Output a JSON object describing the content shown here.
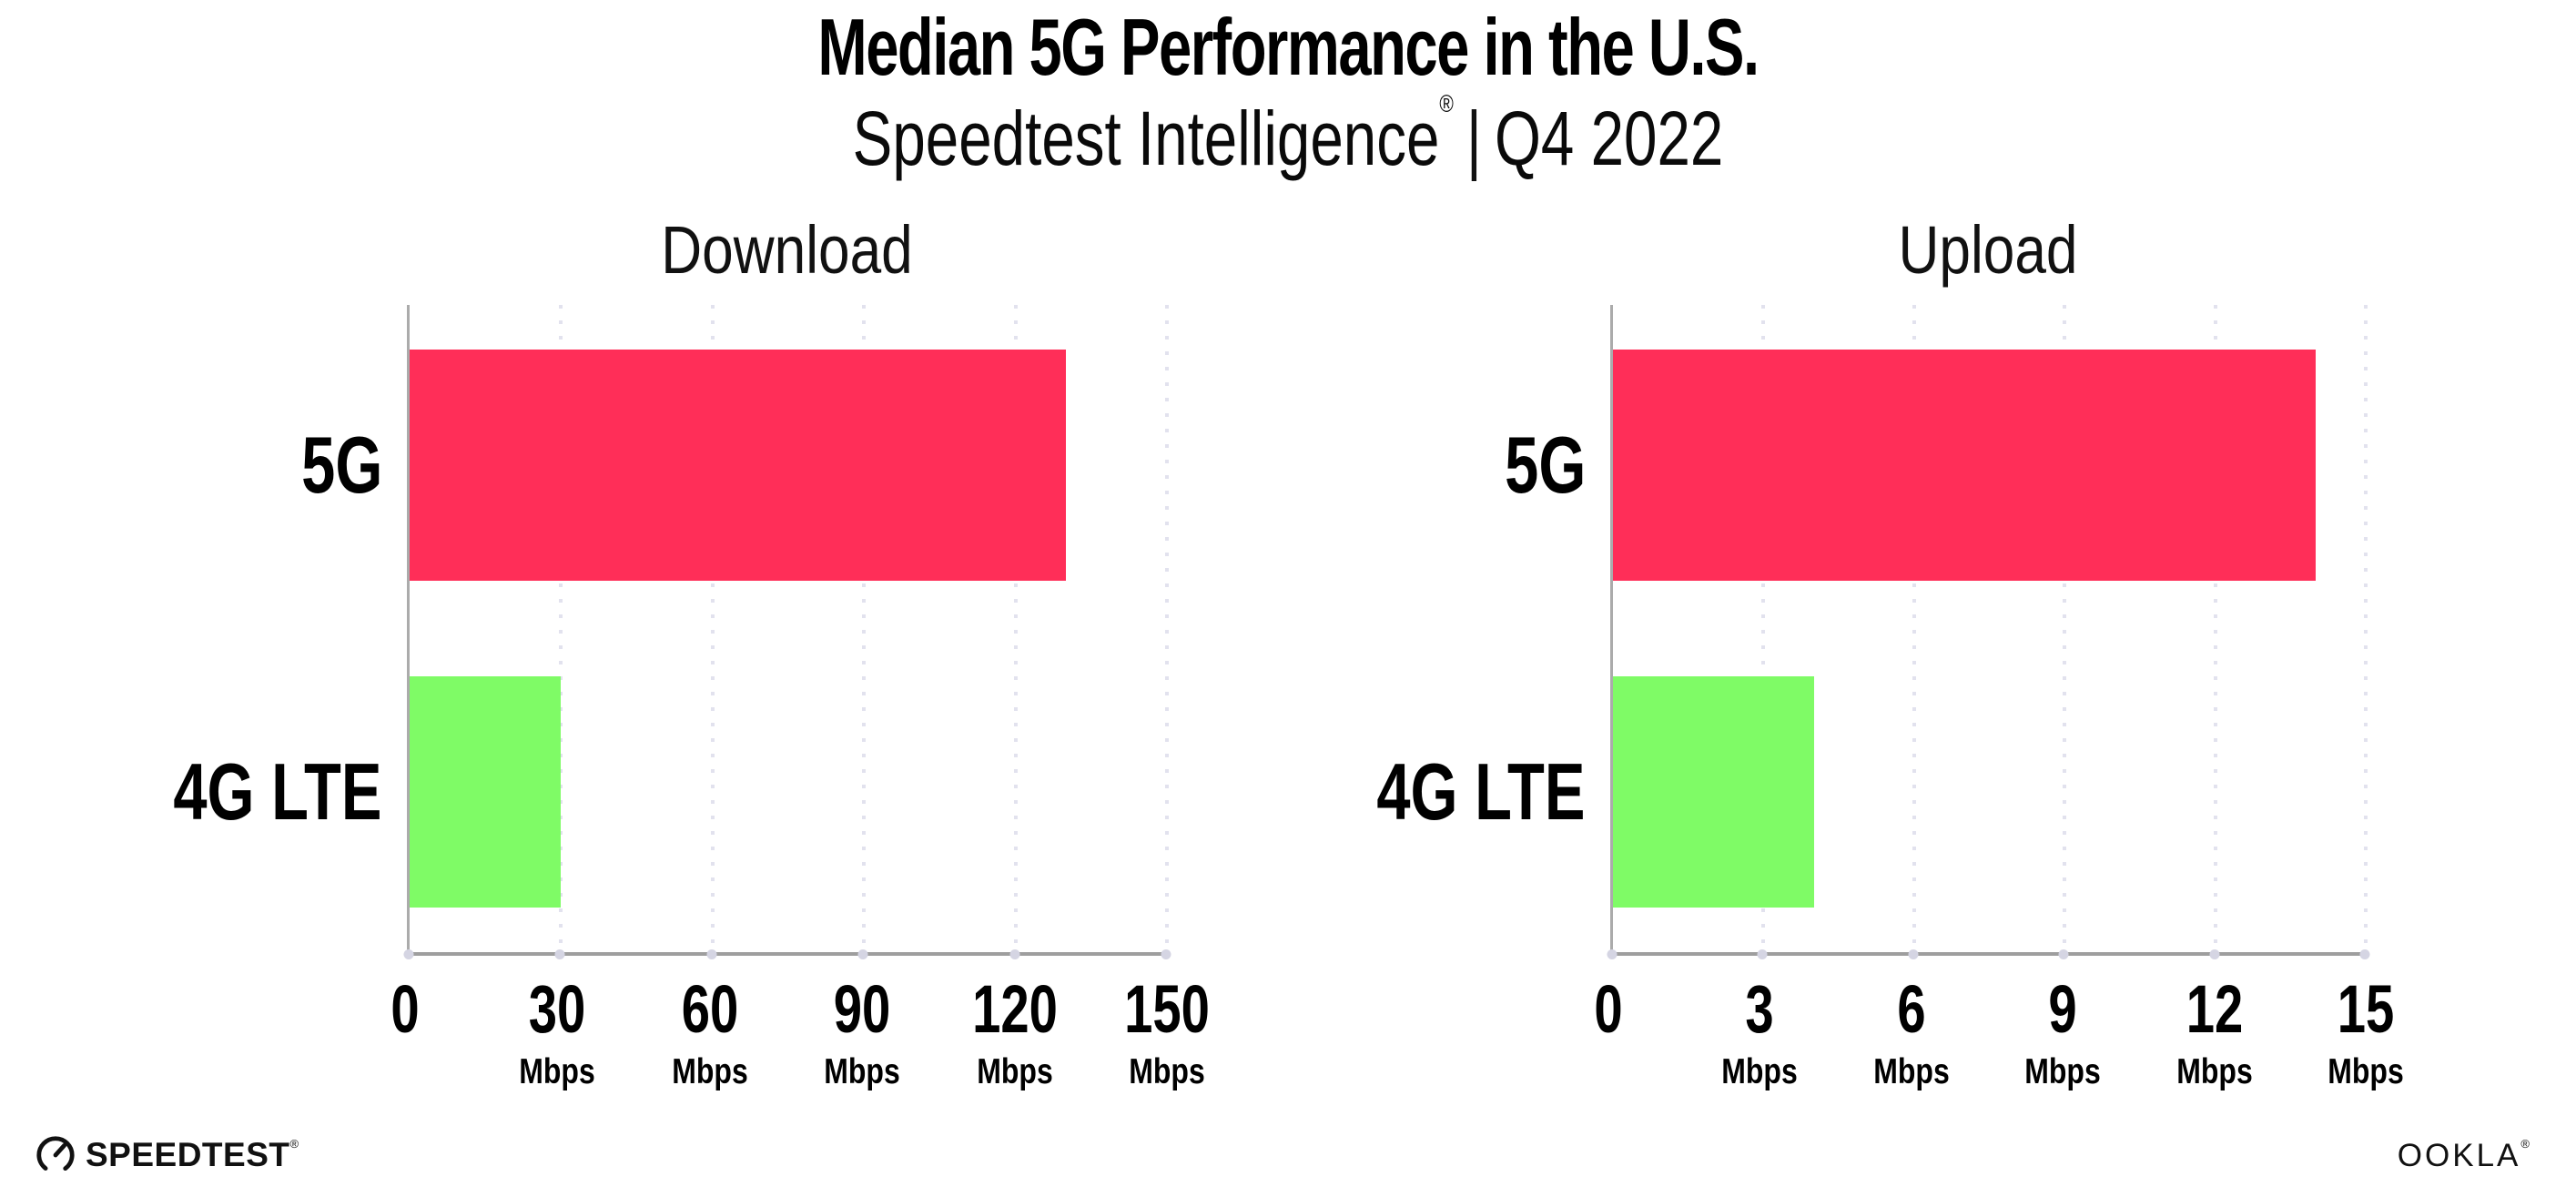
{
  "header": {
    "title": "Median 5G Performance in the U.S.",
    "subtitle": {
      "brand": "Speedtest Intelligence",
      "mark": "®",
      "divider": "|",
      "period": "Q4 2022"
    }
  },
  "colors": {
    "bar_5g": "#ff2e58",
    "bar_4g_lte": "#7ffb66",
    "axis": "#9e9e9e",
    "gridline": "#e2e2ee",
    "text": "#000000"
  },
  "chart_data": [
    {
      "type": "bar",
      "orientation": "horizontal",
      "title": "Download",
      "categories": [
        "5G",
        "4G LTE"
      ],
      "values": [
        130,
        30
      ],
      "unit": "Mbps",
      "xlim": [
        0,
        150
      ],
      "xticks": [
        0,
        30,
        60,
        90,
        120,
        150
      ],
      "bar_colors": [
        "#ff2e58",
        "#7ffb66"
      ],
      "grid": "dotted-vertical-gridlines",
      "legend": "none"
    },
    {
      "type": "bar",
      "orientation": "horizontal",
      "title": "Upload",
      "categories": [
        "5G",
        "4G LTE"
      ],
      "values": [
        14,
        4
      ],
      "unit": "Mbps",
      "xlim": [
        0,
        15
      ],
      "xticks": [
        0,
        3,
        6,
        9,
        12,
        15
      ],
      "bar_colors": [
        "#ff2e58",
        "#7ffb66"
      ],
      "grid": "dotted-vertical-gridlines",
      "legend": "none"
    }
  ],
  "footer": {
    "speedtest": {
      "label": "SPEEDTEST",
      "mark": "®"
    },
    "ookla": {
      "label": "OOKLA",
      "mark": "®"
    }
  }
}
